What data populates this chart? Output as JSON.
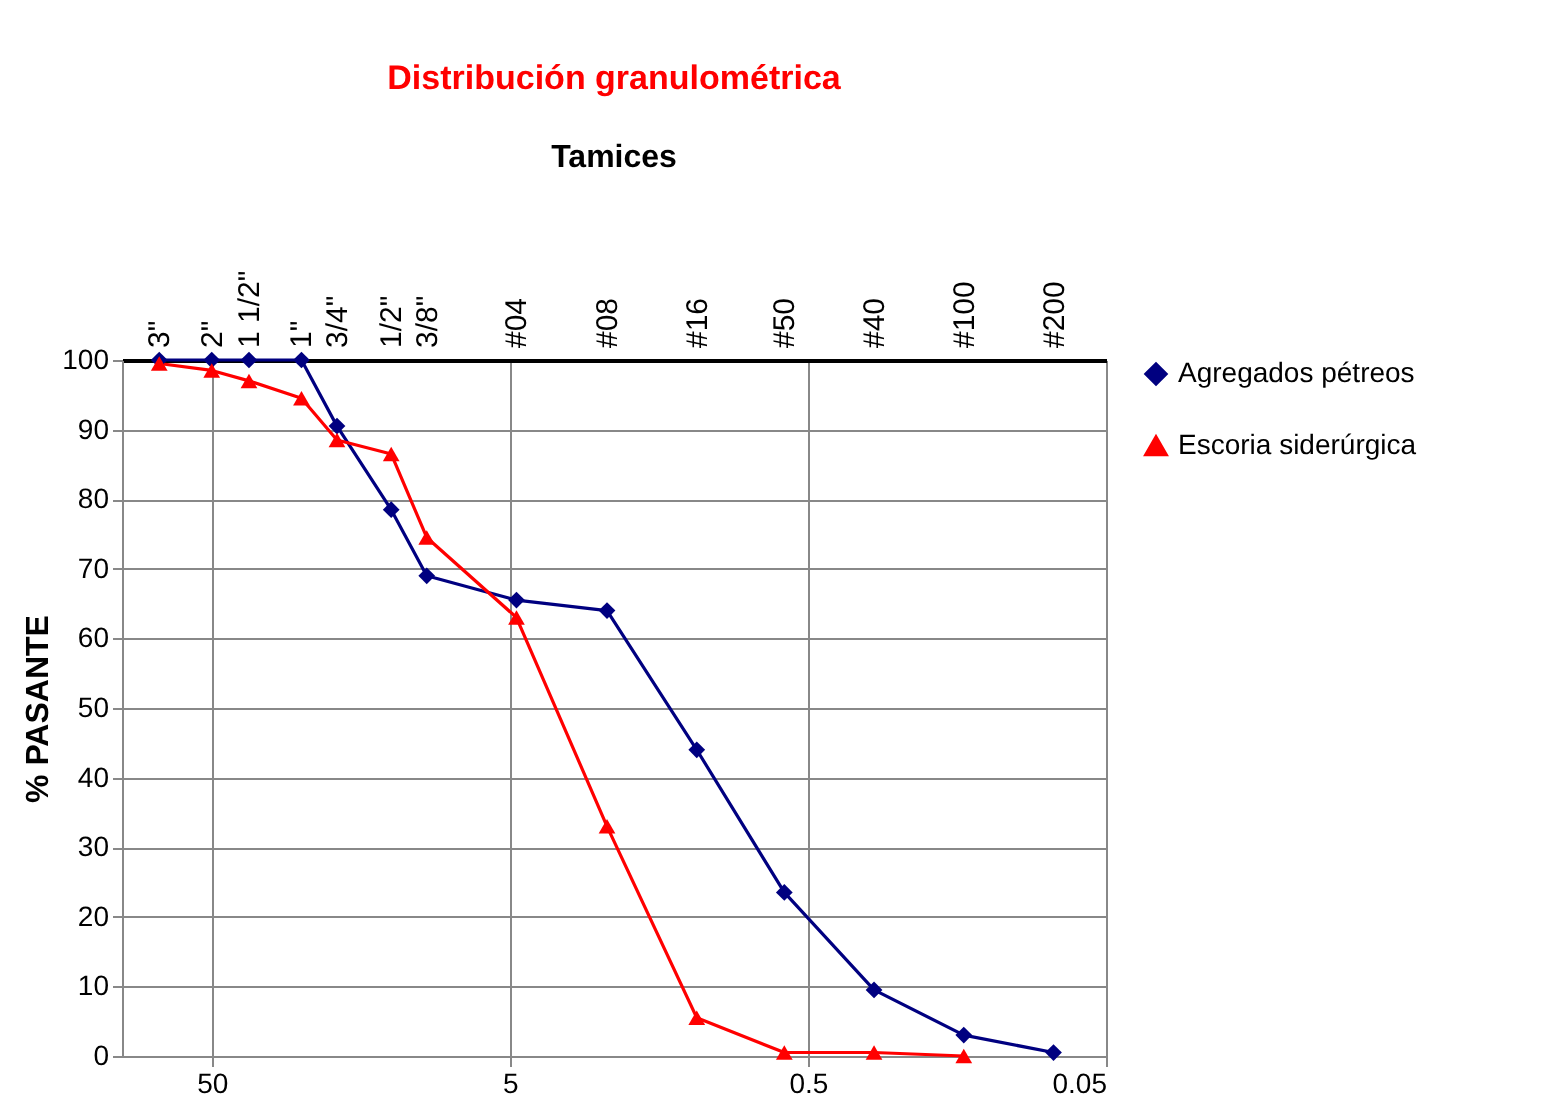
{
  "chart_data": {
    "type": "line",
    "title": "Distribución granulométrica",
    "ylabel": "% PASANTE",
    "x": [
      75,
      50,
      37.5,
      25,
      19,
      12.5,
      9.5,
      4.75,
      2.36,
      1.18,
      0.6,
      0.3,
      0.15,
      0.075
    ],
    "series": [
      {
        "name": "Agregados pétreos",
        "color": "#000080",
        "marker": "diamond",
        "values": [
          100,
          100,
          100,
          100,
          90.5,
          78.5,
          69,
          65.5,
          64,
          44,
          23.5,
          9.5,
          3,
          0.5
        ]
      },
      {
        "name": "Escoria siderúrgica",
        "color": "#ff0000",
        "marker": "triangle",
        "values": [
          99.5,
          98.5,
          97,
          94.5,
          88.5,
          86.5,
          74.5,
          63,
          33,
          5.5,
          0.5,
          0.5,
          0,
          null
        ]
      }
    ],
    "log": "x",
    "xlim": [
      100,
      0.05
    ],
    "xticks": [
      50,
      5,
      0.5,
      0.05
    ],
    "ylim": [
      0,
      100
    ],
    "yticks": [
      0,
      10,
      20,
      30,
      40,
      50,
      60,
      70,
      80,
      90,
      100
    ],
    "annotations": [
      "Tamices",
      "3\"",
      "2\"",
      "1 1/2\"",
      "1\"",
      "3/4\"",
      "1/2\"",
      "3/8\"",
      "#04",
      "#08",
      "#16",
      "#50",
      "#40",
      "#100",
      "#200"
    ],
    "grid": true,
    "legend": "right"
  }
}
